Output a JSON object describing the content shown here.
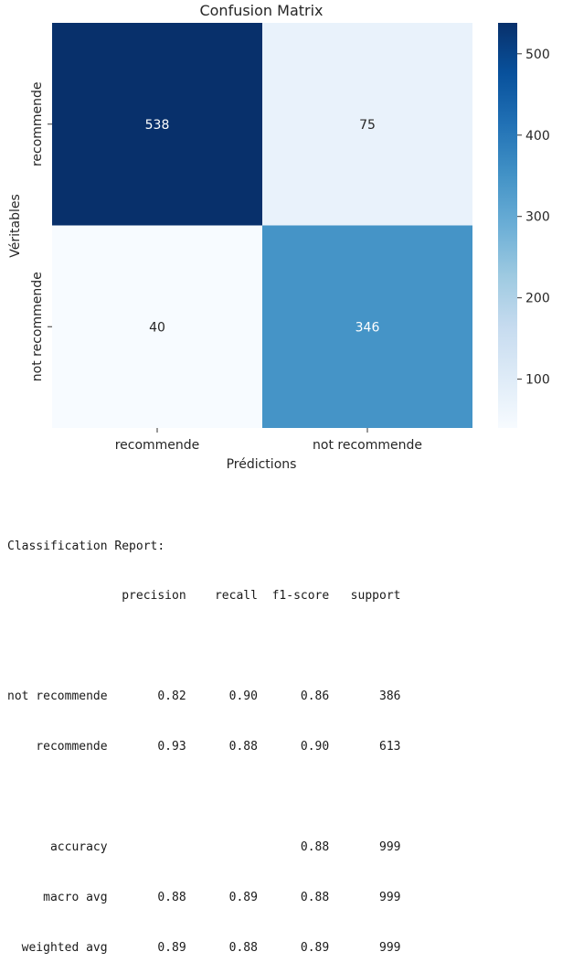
{
  "chart_data": {
    "type": "heatmap",
    "title": "Confusion Matrix",
    "xlabel": "Prédictions",
    "ylabel": "Véritables",
    "x_categories": [
      "recommende",
      "not recommende"
    ],
    "y_categories": [
      "recommende",
      "not recommende"
    ],
    "values": [
      [
        538,
        75
      ],
      [
        40,
        346
      ]
    ],
    "colorbar": {
      "range": [
        40,
        538
      ],
      "ticks": [
        100,
        200,
        300,
        400,
        500
      ]
    },
    "colormap": "Blues",
    "legend": "right"
  },
  "report": {
    "title": "Classification Report:",
    "columns": [
      "precision",
      "recall",
      "f1-score",
      "support"
    ],
    "rows": [
      {
        "label": "not recommende",
        "precision": "0.82",
        "recall": "0.90",
        "f1": "0.86",
        "support": "386"
      },
      {
        "label": "recommende",
        "precision": "0.93",
        "recall": "0.88",
        "f1": "0.90",
        "support": "613"
      }
    ],
    "summary": [
      {
        "label": "accuracy",
        "precision": "",
        "recall": "",
        "f1": "0.88",
        "support": "999"
      },
      {
        "label": "macro avg",
        "precision": "0.88",
        "recall": "0.89",
        "f1": "0.88",
        "support": "999"
      },
      {
        "label": "weighted avg",
        "precision": "0.89",
        "recall": "0.88",
        "f1": "0.89",
        "support": "999"
      }
    ]
  }
}
